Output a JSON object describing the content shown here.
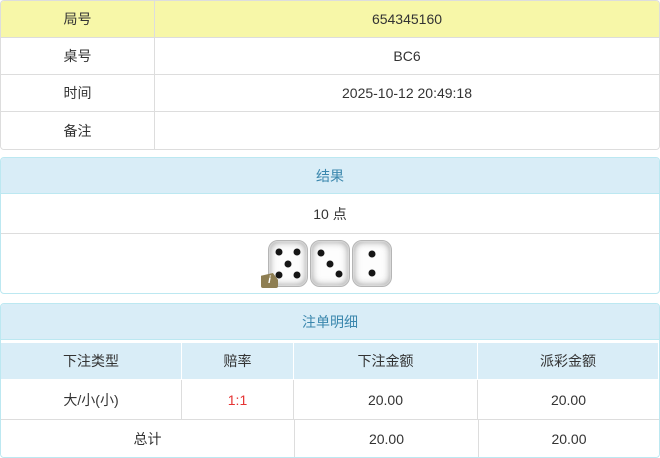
{
  "info_table": {
    "rows": [
      {
        "label": "局号",
        "value": "654345160"
      },
      {
        "label": "桌号",
        "value": "BC6"
      },
      {
        "label": "时间",
        "value": "2025-10-12 20:49:18"
      },
      {
        "label": "备注",
        "value": ""
      }
    ]
  },
  "result_panel": {
    "title": "结果",
    "points": "10 点",
    "dice": [
      5,
      3,
      2
    ],
    "info_badge": "i"
  },
  "bets_panel": {
    "title": "注单明细",
    "columns": {
      "type": "下注类型",
      "odds": "赔率",
      "bet": "下注金额",
      "payout": "派彩金额"
    },
    "rows": [
      {
        "type": "大/小(小)",
        "odds": "1:1",
        "bet": "20.00",
        "payout": "20.00"
      }
    ],
    "total": {
      "label": "总计",
      "bet": "20.00",
      "payout": "20.00"
    }
  },
  "colors": {
    "highlight-yellow": "#f7f7a8",
    "panel-header-bg": "#d9edf7",
    "panel-border": "#bce8f1",
    "header-text": "#3a87ad",
    "odds-red": "#e53333",
    "table-border": "#dddddd",
    "body-text": "#333333"
  },
  "dice_pips": {
    "1": [
      [
        50,
        50
      ]
    ],
    "2": [
      [
        50,
        28
      ],
      [
        50,
        72
      ]
    ],
    "3": [
      [
        27,
        26
      ],
      [
        50,
        50
      ],
      [
        73,
        74
      ]
    ],
    "4": [
      [
        27,
        27
      ],
      [
        73,
        27
      ],
      [
        27,
        73
      ],
      [
        73,
        73
      ]
    ],
    "5": [
      [
        26,
        25
      ],
      [
        74,
        25
      ],
      [
        50,
        50
      ],
      [
        26,
        75
      ],
      [
        74,
        75
      ]
    ],
    "6": [
      [
        28,
        24
      ],
      [
        72,
        24
      ],
      [
        28,
        50
      ],
      [
        72,
        50
      ],
      [
        28,
        76
      ],
      [
        72,
        76
      ]
    ]
  }
}
